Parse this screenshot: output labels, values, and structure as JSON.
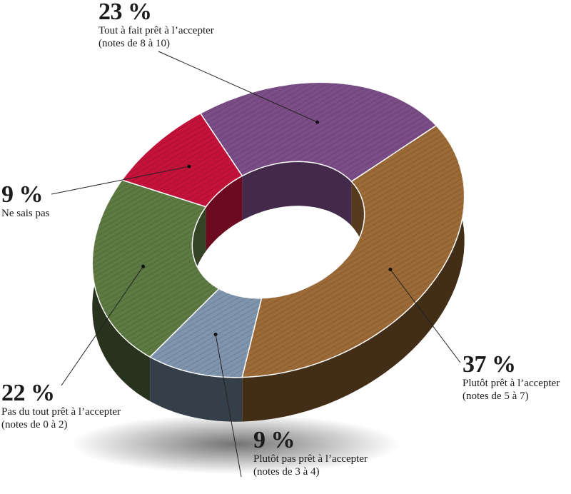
{
  "chart_data": {
    "type": "pie",
    "variant": "3d-donut",
    "title": "",
    "colors": {
      "purple": "#7a4d86",
      "brown": "#9c6a37",
      "blue": "#7f95ad",
      "green": "#5c7a42",
      "red": "#c4123a"
    },
    "slices": [
      {
        "label": "Tout à fait prêt à l’accepter",
        "sub": "(notes de 8 à 10)",
        "percent": 23,
        "percent_label": "23 %",
        "color": "#7a4d86"
      },
      {
        "label": "Plutôt prêt à l’accepter",
        "sub": "(notes de 5 à 7)",
        "percent": 37,
        "percent_label": "37 %",
        "color": "#9c6a37"
      },
      {
        "label": "Plutôt pas prêt à l’accepter",
        "sub": "(notes de 3 à 4)",
        "percent": 9,
        "percent_label": "9 %",
        "color": "#7f95ad"
      },
      {
        "label": "Pas du tout prêt à l’accepter",
        "sub": "(notes de 0 à 2)",
        "percent": 22,
        "percent_label": "22 %",
        "color": "#5c7a42"
      },
      {
        "label": "Ne sais pas",
        "sub": "",
        "percent": 9,
        "percent_label": "9 %",
        "color": "#c4123a"
      }
    ]
  }
}
